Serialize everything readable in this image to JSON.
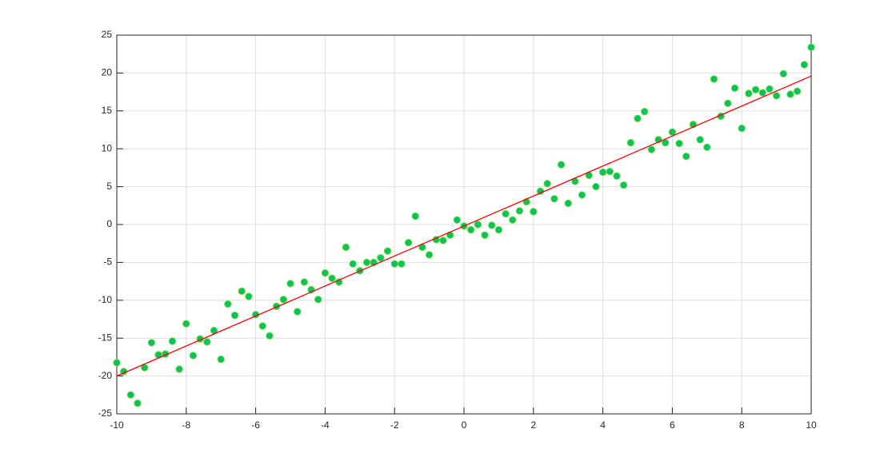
{
  "chart_data": {
    "type": "scatter",
    "x": [
      -10,
      -9.8,
      -9.6,
      -9.4,
      -9.2,
      -9,
      -8.8,
      -8.6,
      -8.4,
      -8.2,
      -8,
      -7.8,
      -7.6,
      -7.4,
      -7.2,
      -7,
      -6.8,
      -6.6,
      -6.4,
      -6.2,
      -6,
      -5.8,
      -5.6,
      -5.4,
      -5.2,
      -5,
      -4.8,
      -4.6,
      -4.4,
      -4.2,
      -4,
      -3.8,
      -3.6,
      -3.4,
      -3.2,
      -3,
      -2.8,
      -2.6,
      -2.4,
      -2.2,
      -2,
      -1.8,
      -1.6,
      -1.4,
      -1.2,
      -1,
      -0.8,
      -0.6,
      -0.4,
      -0.2,
      0,
      0.2,
      0.4,
      0.6,
      0.8,
      1,
      1.2,
      1.4,
      1.6,
      1.8,
      2,
      2.2,
      2.4,
      2.6,
      2.8,
      3,
      3.2,
      3.4,
      3.6,
      3.8,
      4,
      4.2,
      4.4,
      4.6,
      4.8,
      5,
      5.2,
      5.4,
      5.6,
      5.8,
      6,
      6.2,
      6.4,
      6.6,
      6.8,
      7,
      7.2,
      7.4,
      7.6,
      7.8,
      8,
      8.2,
      8.4,
      8.6,
      8.8,
      9,
      9.2,
      9.4,
      9.6,
      9.8,
      10
    ],
    "values": [
      -18.25,
      -19.4,
      -22.5,
      -23.6,
      -18.9,
      -15.6,
      -17.2,
      -17.1,
      -15.4,
      -19.1,
      -13.1,
      -17.3,
      -15.1,
      -15.5,
      -14.0,
      -17.8,
      -10.5,
      -12.0,
      -8.8,
      -9.5,
      -11.9,
      -13.4,
      -14.7,
      -10.8,
      -9.9,
      -7.8,
      -11.5,
      -7.6,
      -8.6,
      -9.9,
      -6.4,
      -7.1,
      -7.6,
      -3.0,
      -5.2,
      -6.1,
      -5.0,
      -5.0,
      -4.4,
      -3.5,
      -5.2,
      -5.2,
      -2.4,
      1.1,
      -3.0,
      -4.0,
      -2.0,
      -2.1,
      -1.4,
      0.6,
      -0.2,
      -0.7,
      0.0,
      -1.4,
      -0.1,
      -0.7,
      1.4,
      0.6,
      1.8,
      3.0,
      1.7,
      4.4,
      5.4,
      3.4,
      7.9,
      2.8,
      5.7,
      3.9,
      6.5,
      5.0,
      6.9,
      7.0,
      6.4,
      5.2,
      10.8,
      14.0,
      14.9,
      9.9,
      11.2,
      10.8,
      12.2,
      10.7,
      9.0,
      13.2,
      11.2,
      10.2,
      19.2,
      14.3,
      16.0,
      18.0,
      12.7,
      17.3,
      17.8,
      17.4,
      17.9,
      17.0,
      19.9,
      17.2,
      17.6,
      21.1,
      23.4
    ],
    "color": "#00c462",
    "fit": {
      "x": [
        -10,
        10
      ],
      "values": [
        -20.0,
        19.6
      ],
      "color": "#ff0000"
    },
    "xlim": [
      -10,
      10
    ],
    "xticks": [
      -10,
      -8,
      -6,
      -4,
      -2,
      0,
      2,
      4,
      6,
      8,
      10
    ],
    "ylim": [
      -25,
      25
    ],
    "yticks": [
      -25,
      -20,
      -15,
      -10,
      -5,
      0,
      5,
      10,
      15,
      20,
      25
    ],
    "grid": true
  }
}
